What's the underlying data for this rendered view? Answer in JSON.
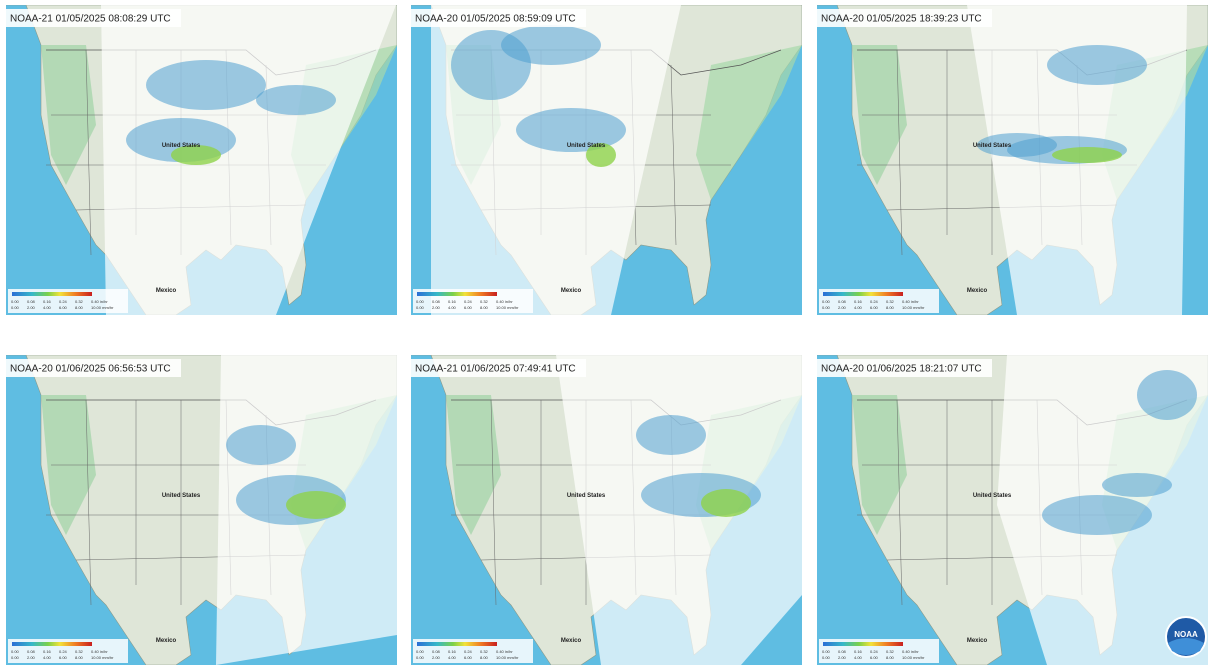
{
  "panels": [
    {
      "title": "NOAA-21 01/05/2025 08:08:29 UTC",
      "country": "United States",
      "south": "Mexico"
    },
    {
      "title": "NOAA-20 01/05/2025 08:59:09 UTC",
      "country": "United States",
      "south": "Mexico"
    },
    {
      "title": "NOAA-20 01/05/2025 18:39:23 UTC",
      "country": "United States",
      "south": "Mexico"
    },
    {
      "title": "NOAA-20 01/06/2025 06:56:53 UTC",
      "country": "United States",
      "south": "Mexico"
    },
    {
      "title": "NOAA-21 01/06/2025 07:49:41 UTC",
      "country": "United States",
      "south": "Mexico"
    },
    {
      "title": "NOAA-20 01/06/2025 18:21:07 UTC",
      "country": "United States",
      "south": "Mexico"
    }
  ],
  "legend": {
    "inches": [
      "0.00",
      "0.08",
      "0.16",
      "0.24",
      "0.32",
      "0.40 in/hr"
    ],
    "mm": [
      "0.00",
      "2.00",
      "4.00",
      "6.00",
      "8.00",
      "10.00 mm/hr"
    ]
  },
  "logo": "NOAA"
}
